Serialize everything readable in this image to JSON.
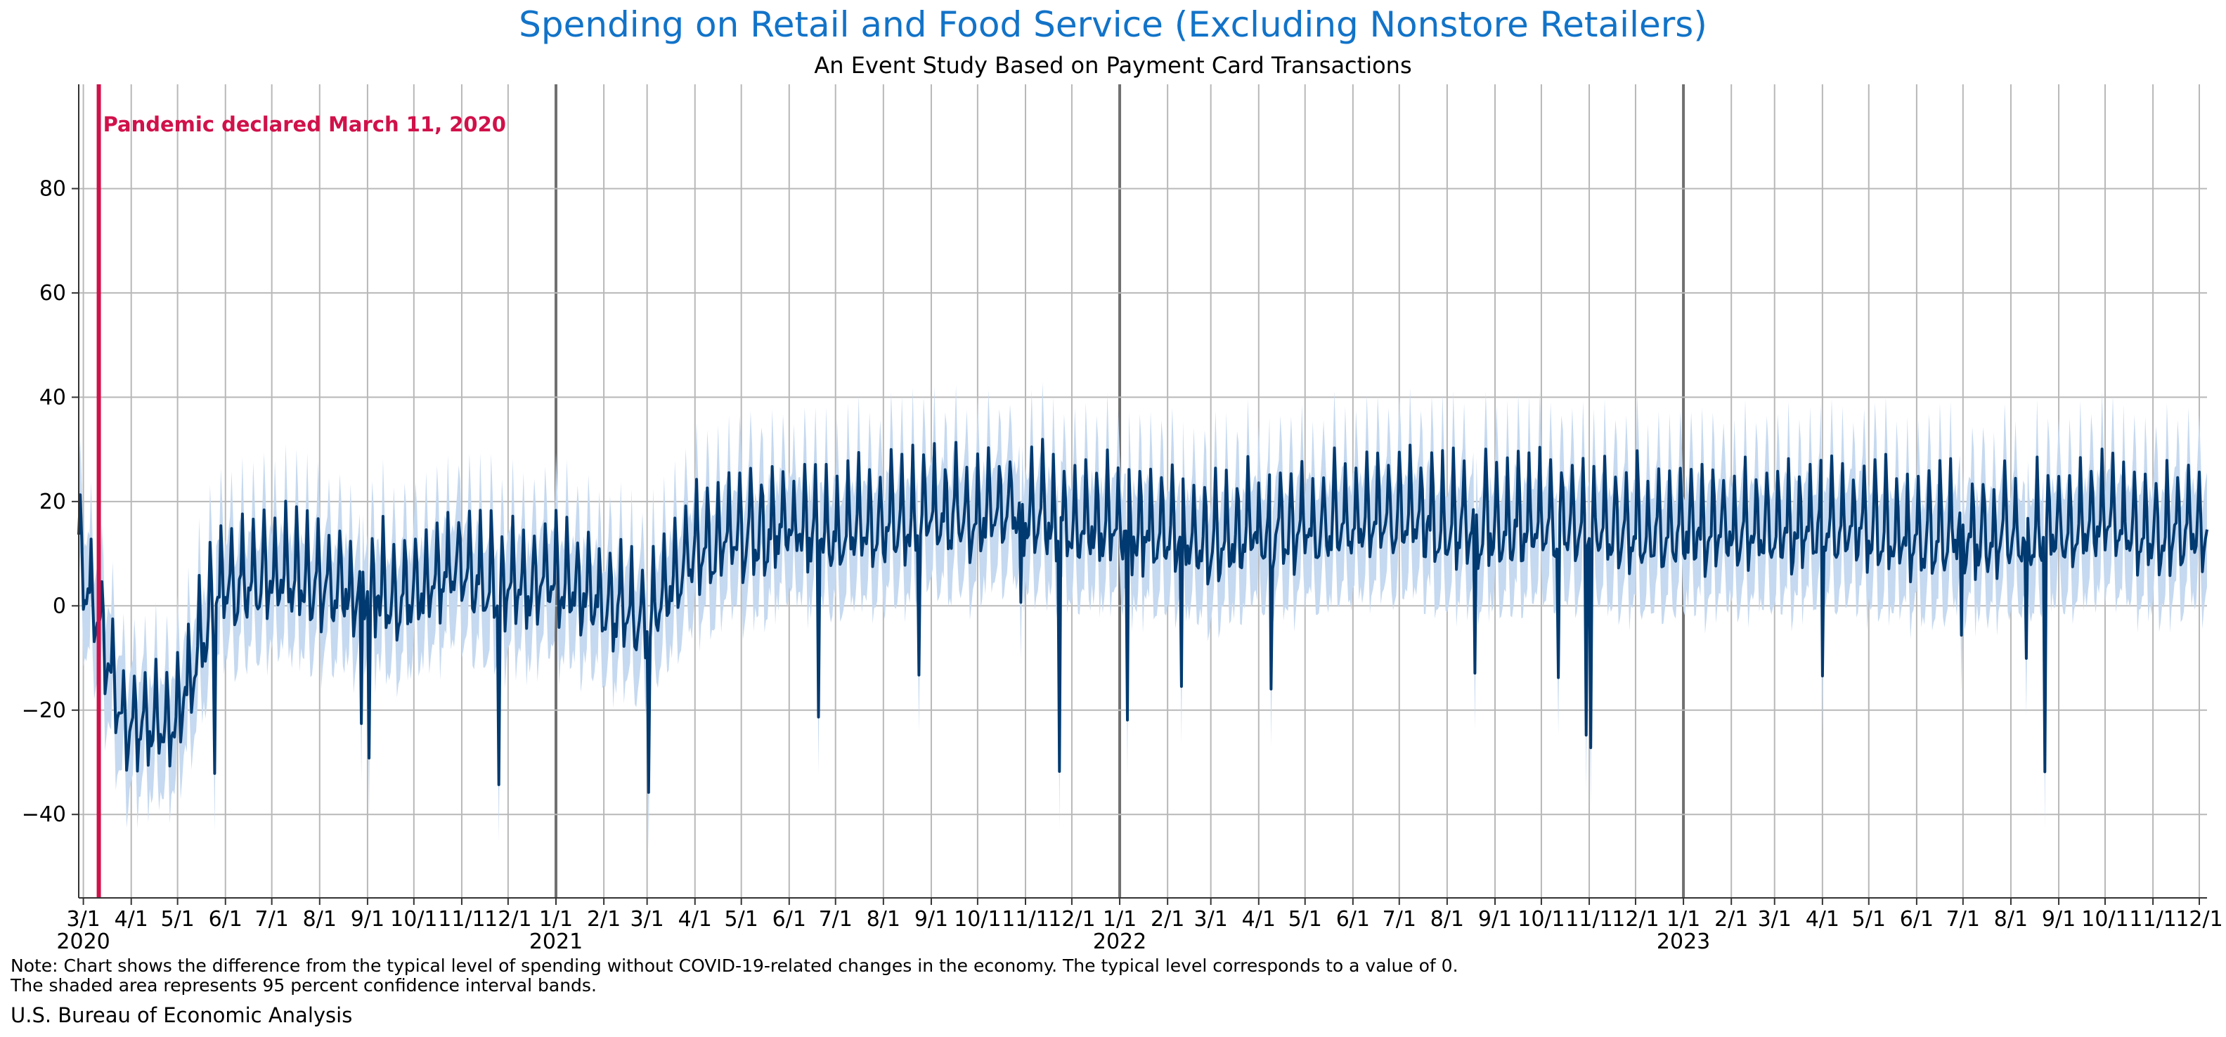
{
  "chart_data": {
    "type": "line",
    "title": "Spending on Retail and Food Service (Excluding Nonstore Retailers)",
    "subtitle": "An Event Study Based on Payment Card Transactions",
    "xlabel": "",
    "ylabel": "",
    "ylim": [
      -56,
      100
    ],
    "yticks": [
      -40,
      -20,
      0,
      20,
      40,
      60,
      80
    ],
    "ytick_labels": [
      "−40",
      "−20",
      "0",
      "20",
      "40",
      "60",
      "80"
    ],
    "grid": true,
    "x_range": {
      "start": "2020-02-27",
      "end": "2023-12-06"
    },
    "x_tick_labels": [
      "3/1",
      "4/1",
      "5/1",
      "6/1",
      "7/1",
      "8/1",
      "9/1",
      "10/1",
      "11/1",
      "12/1",
      "1/1",
      "2/1",
      "3/1",
      "4/1",
      "5/1",
      "6/1",
      "7/1",
      "8/1",
      "9/1",
      "10/1",
      "11/1",
      "12/1",
      "1/1",
      "2/1",
      "3/1",
      "4/1",
      "5/1",
      "6/1",
      "7/1",
      "8/1",
      "9/1",
      "10/1",
      "11/1",
      "12/1",
      "1/1",
      "2/1",
      "3/1",
      "4/1",
      "5/1",
      "6/1",
      "7/1",
      "8/1",
      "9/1",
      "10/1",
      "11/1",
      "12/1"
    ],
    "year_labels": [
      "2020",
      "2021",
      "2022",
      "2023"
    ],
    "annotation": {
      "date": "2020-03-11",
      "label": "Pandemic declared March 11, 2020",
      "color": "#d0114a"
    },
    "series": [
      {
        "name": "Difference from typical level of spending",
        "color": "#003a70",
        "anchor_interval": "monthly",
        "start_date": "2020-02-27",
        "values": [
          8,
          -25,
          -25,
          1,
          4,
          2,
          1,
          0,
          5,
          1,
          2,
          0,
          -6,
          8,
          11,
          13,
          12,
          13,
          15,
          15,
          16,
          14,
          13,
          12,
          10,
          12,
          13,
          14,
          15,
          14,
          13,
          14,
          14,
          13,
          12,
          13,
          12,
          13,
          13,
          11,
          12,
          11,
          13,
          14,
          12,
          13,
          12,
          12
        ]
      },
      {
        "name": "95 percent confidence interval",
        "color": "#c5d9f0",
        "half_width": 11
      }
    ]
  },
  "notes": [
    "Note: Chart shows the difference from the typical level of spending without COVID-19-related changes in the economy. The typical level corresponds to a value of 0.",
    "The shaded area represents 95 percent confidence interval bands."
  ],
  "source": "U.S. Bureau of Economic Analysis"
}
